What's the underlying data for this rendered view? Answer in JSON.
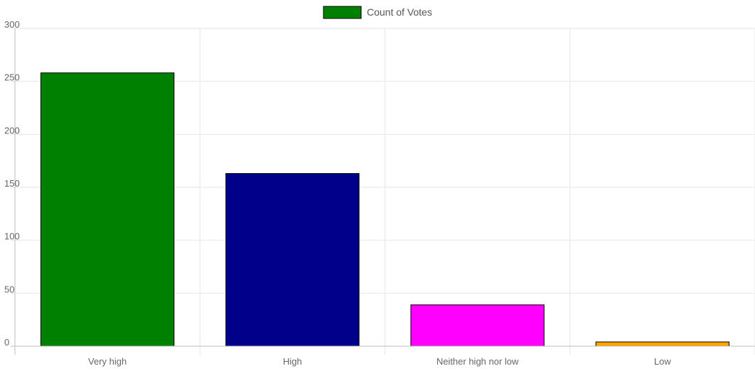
{
  "chart_data": {
    "type": "bar",
    "categories": [
      "Very high",
      "High",
      "Neither high nor low",
      "Low"
    ],
    "series": [
      {
        "name": "Count of Votes",
        "values": [
          258,
          163,
          39,
          4
        ]
      }
    ],
    "bar_colors": [
      "#008000",
      "#00008b",
      "#ff00ff",
      "#ffa500"
    ],
    "legend_swatch_color": "#008000",
    "bar_border_color": "#000000",
    "grid_color": "#e6e6e6",
    "axis_color": "#bdbdbd",
    "ylim": [
      0,
      300
    ],
    "yticks": [
      "0",
      "50",
      "100",
      "150",
      "200",
      "250",
      "300"
    ],
    "grid": true,
    "legend": "top-center",
    "xlabel": "",
    "ylabel": "",
    "title": ""
  }
}
